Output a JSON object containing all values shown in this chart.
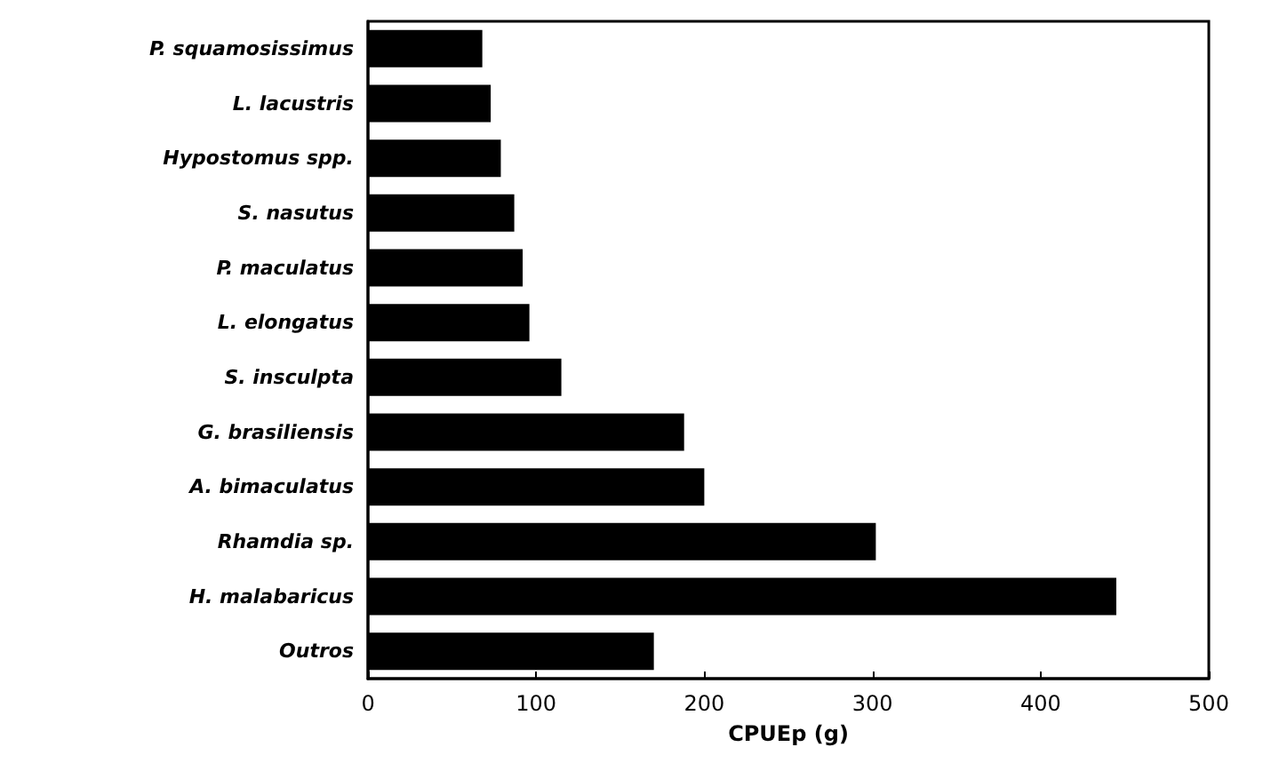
{
  "chart_data": {
    "type": "bar",
    "orientation": "horizontal",
    "xlabel": "CPUEp (g)",
    "categories": [
      "P. squamosissimus",
      "L. lacustris",
      "Hypostomus spp.",
      "S. nasutus",
      "P. maculatus",
      "L. elongatus",
      "S. insculpta",
      "G. brasiliensis",
      "A. bimaculatus",
      "Rhamdia sp.",
      "H. malabaricus",
      "Outros"
    ],
    "values": [
      68,
      73,
      79,
      87,
      92,
      96,
      115,
      188,
      200,
      302,
      445,
      170
    ],
    "color": "#000000",
    "xlim": [
      0,
      500
    ],
    "xticks": [
      0,
      100,
      200,
      300,
      400,
      500
    ],
    "grid": false
  }
}
